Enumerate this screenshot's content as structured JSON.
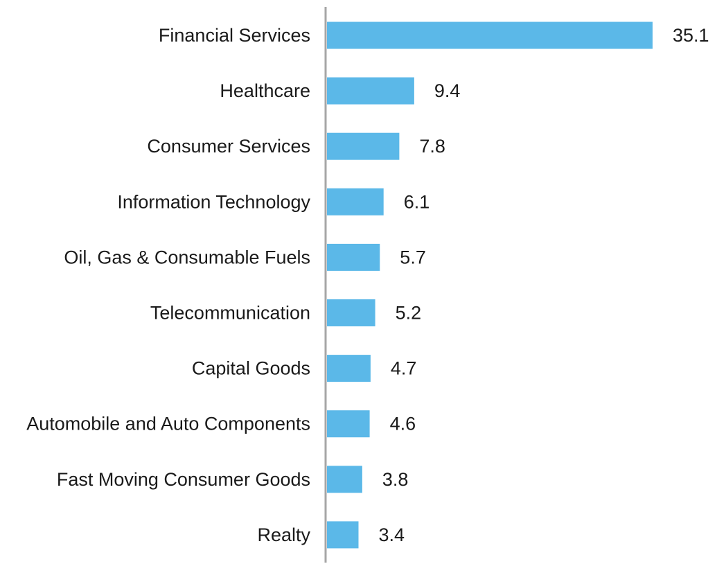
{
  "chart_data": {
    "type": "bar",
    "orientation": "horizontal",
    "categories": [
      "Financial Services",
      "Healthcare",
      "Consumer Services",
      "Information Technology",
      "Oil, Gas & Consumable Fuels",
      "Telecommunication",
      "Capital Goods",
      "Automobile and Auto Components",
      "Fast Moving Consumer Goods",
      "Realty"
    ],
    "values": [
      35.1,
      9.4,
      7.8,
      6.1,
      5.7,
      5.2,
      4.7,
      4.6,
      3.8,
      3.4
    ],
    "data_labels": [
      "35.1",
      "9.4",
      "7.8",
      "6.1",
      "5.7",
      "5.2",
      "4.7",
      "4.6",
      "3.8",
      "3.4"
    ],
    "title": "",
    "xlabel": "",
    "ylabel": "",
    "xlim": [
      0,
      35.1
    ],
    "grid": false,
    "legend": "none",
    "colors": {
      "bar": "#5BB8E8",
      "axis": "#A6A6A6",
      "text": "#1A1A1A"
    }
  }
}
